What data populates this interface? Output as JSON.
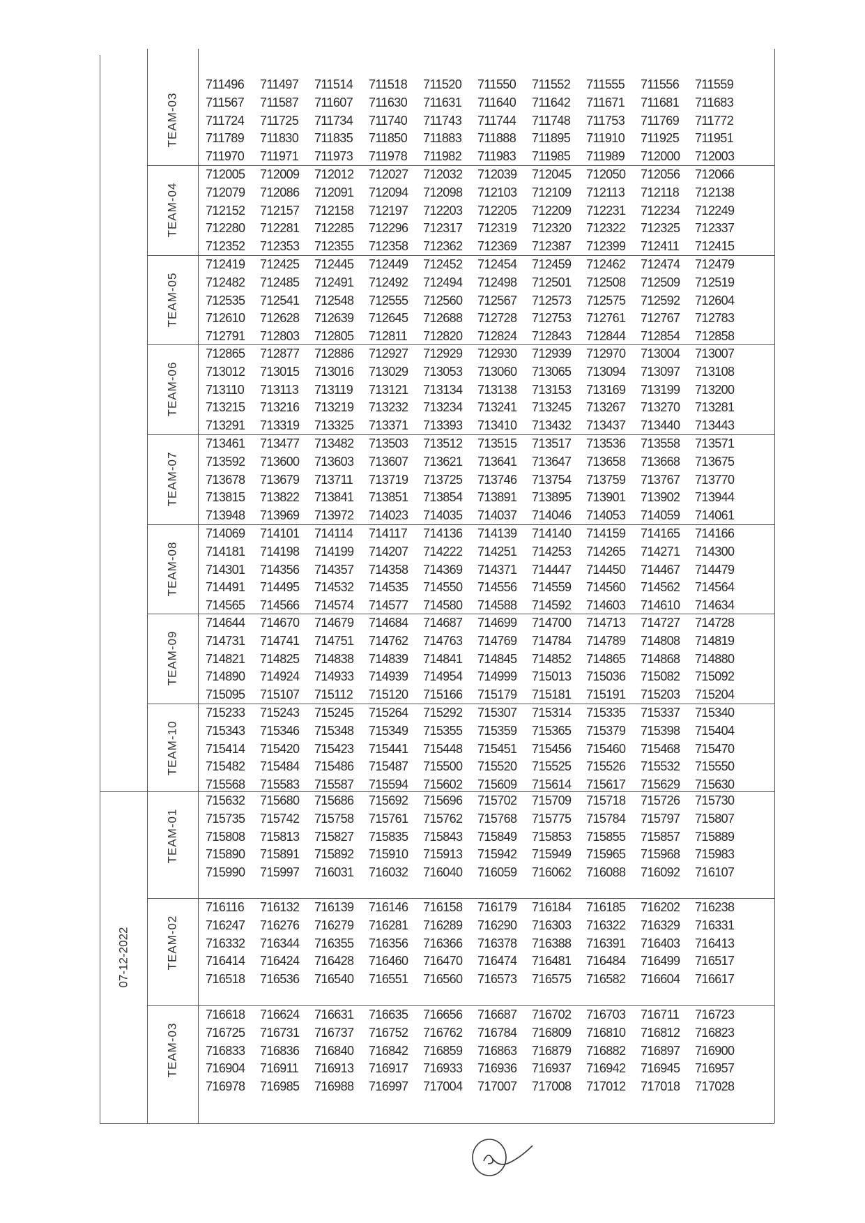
{
  "date_groups": [
    {
      "date": "07-12-2022"
    }
  ],
  "sections": [
    {
      "team": "TEAM-03",
      "rows": [
        [
          "711496",
          "711497",
          "711514",
          "711518",
          "711520",
          "711550",
          "711552",
          "711555",
          "711556",
          "711559"
        ],
        [
          "711567",
          "711587",
          "711607",
          "711630",
          "711631",
          "711640",
          "711642",
          "711671",
          "711681",
          "711683"
        ],
        [
          "711724",
          "711725",
          "711734",
          "711740",
          "711743",
          "711744",
          "711748",
          "711753",
          "711769",
          "711772"
        ],
        [
          "711789",
          "711830",
          "711835",
          "711850",
          "711883",
          "711888",
          "711895",
          "711910",
          "711925",
          "711951"
        ],
        [
          "711970",
          "711971",
          "711973",
          "711978",
          "711982",
          "711983",
          "711985",
          "711989",
          "712000",
          "712003"
        ]
      ]
    },
    {
      "team": "TEAM-04",
      "rows": [
        [
          "712005",
          "712009",
          "712012",
          "712027",
          "712032",
          "712039",
          "712045",
          "712050",
          "712056",
          "712066"
        ],
        [
          "712079",
          "712086",
          "712091",
          "712094",
          "712098",
          "712103",
          "712109",
          "712113",
          "712118",
          "712138"
        ],
        [
          "712152",
          "712157",
          "712158",
          "712197",
          "712203",
          "712205",
          "712209",
          "712231",
          "712234",
          "712249"
        ],
        [
          "712280",
          "712281",
          "712285",
          "712296",
          "712317",
          "712319",
          "712320",
          "712322",
          "712325",
          "712337"
        ],
        [
          "712352",
          "712353",
          "712355",
          "712358",
          "712362",
          "712369",
          "712387",
          "712399",
          "712411",
          "712415"
        ]
      ]
    },
    {
      "team": "TEAM-05",
      "rows": [
        [
          "712419",
          "712425",
          "712445",
          "712449",
          "712452",
          "712454",
          "712459",
          "712462",
          "712474",
          "712479"
        ],
        [
          "712482",
          "712485",
          "712491",
          "712492",
          "712494",
          "712498",
          "712501",
          "712508",
          "712509",
          "712519"
        ],
        [
          "712535",
          "712541",
          "712548",
          "712555",
          "712560",
          "712567",
          "712573",
          "712575",
          "712592",
          "712604"
        ],
        [
          "712610",
          "712628",
          "712639",
          "712645",
          "712688",
          "712728",
          "712753",
          "712761",
          "712767",
          "712783"
        ],
        [
          "712791",
          "712803",
          "712805",
          "712811",
          "712820",
          "712824",
          "712843",
          "712844",
          "712854",
          "712858"
        ]
      ]
    },
    {
      "team": "TEAM-06",
      "rows": [
        [
          "712865",
          "712877",
          "712886",
          "712927",
          "712929",
          "712930",
          "712939",
          "712970",
          "713004",
          "713007"
        ],
        [
          "713012",
          "713015",
          "713016",
          "713029",
          "713053",
          "713060",
          "713065",
          "713094",
          "713097",
          "713108"
        ],
        [
          "713110",
          "713113",
          "713119",
          "713121",
          "713134",
          "713138",
          "713153",
          "713169",
          "713199",
          "713200"
        ],
        [
          "713215",
          "713216",
          "713219",
          "713232",
          "713234",
          "713241",
          "713245",
          "713267",
          "713270",
          "713281"
        ],
        [
          "713291",
          "713319",
          "713325",
          "713371",
          "713393",
          "713410",
          "713432",
          "713437",
          "713440",
          "713443"
        ]
      ]
    },
    {
      "team": "TEAM-07",
      "rows": [
        [
          "713461",
          "713477",
          "713482",
          "713503",
          "713512",
          "713515",
          "713517",
          "713536",
          "713558",
          "713571"
        ],
        [
          "713592",
          "713600",
          "713603",
          "713607",
          "713621",
          "713641",
          "713647",
          "713658",
          "713668",
          "713675"
        ],
        [
          "713678",
          "713679",
          "713711",
          "713719",
          "713725",
          "713746",
          "713754",
          "713759",
          "713767",
          "713770"
        ],
        [
          "713815",
          "713822",
          "713841",
          "713851",
          "713854",
          "713891",
          "713895",
          "713901",
          "713902",
          "713944"
        ],
        [
          "713948",
          "713969",
          "713972",
          "714023",
          "714035",
          "714037",
          "714046",
          "714053",
          "714059",
          "714061"
        ]
      ]
    },
    {
      "team": "TEAM-08",
      "rows": [
        [
          "714069",
          "714101",
          "714114",
          "714117",
          "714136",
          "714139",
          "714140",
          "714159",
          "714165",
          "714166"
        ],
        [
          "714181",
          "714198",
          "714199",
          "714207",
          "714222",
          "714251",
          "714253",
          "714265",
          "714271",
          "714300"
        ],
        [
          "714301",
          "714356",
          "714357",
          "714358",
          "714369",
          "714371",
          "714447",
          "714450",
          "714467",
          "714479"
        ],
        [
          "714491",
          "714495",
          "714532",
          "714535",
          "714550",
          "714556",
          "714559",
          "714560",
          "714562",
          "714564"
        ],
        [
          "714565",
          "714566",
          "714574",
          "714577",
          "714580",
          "714588",
          "714592",
          "714603",
          "714610",
          "714634"
        ]
      ]
    },
    {
      "team": "TEAM-09",
      "rows": [
        [
          "714644",
          "714670",
          "714679",
          "714684",
          "714687",
          "714699",
          "714700",
          "714713",
          "714727",
          "714728"
        ],
        [
          "714731",
          "714741",
          "714751",
          "714762",
          "714763",
          "714769",
          "714784",
          "714789",
          "714808",
          "714819"
        ],
        [
          "714821",
          "714825",
          "714838",
          "714839",
          "714841",
          "714845",
          "714852",
          "714865",
          "714868",
          "714880"
        ],
        [
          "714890",
          "714924",
          "714933",
          "714939",
          "714954",
          "714999",
          "715013",
          "715036",
          "715082",
          "715092"
        ],
        [
          "715095",
          "715107",
          "715112",
          "715120",
          "715166",
          "715179",
          "715181",
          "715191",
          "715203",
          "715204"
        ]
      ]
    },
    {
      "team": "TEAM-10",
      "rows": [
        [
          "715233",
          "715243",
          "715245",
          "715264",
          "715292",
          "715307",
          "715314",
          "715335",
          "715337",
          "715340"
        ],
        [
          "715343",
          "715346",
          "715348",
          "715349",
          "715355",
          "715359",
          "715365",
          "715379",
          "715398",
          "715404"
        ],
        [
          "715414",
          "715420",
          "715423",
          "715441",
          "715448",
          "715451",
          "715456",
          "715460",
          "715468",
          "715470"
        ],
        [
          "715482",
          "715484",
          "715486",
          "715487",
          "715500",
          "715520",
          "715525",
          "715526",
          "715532",
          "715550"
        ],
        [
          "715568",
          "715583",
          "715587",
          "715594",
          "715602",
          "715609",
          "715614",
          "715617",
          "715629",
          "715630"
        ]
      ]
    },
    {
      "team": "TEAM-01",
      "rows": [
        [
          "715632",
          "715680",
          "715686",
          "715692",
          "715696",
          "715702",
          "715709",
          "715718",
          "715726",
          "715730"
        ],
        [
          "715735",
          "715742",
          "715758",
          "715761",
          "715762",
          "715768",
          "715775",
          "715784",
          "715797",
          "715807"
        ],
        [
          "715808",
          "715813",
          "715827",
          "715835",
          "715843",
          "715849",
          "715853",
          "715855",
          "715857",
          "715889"
        ],
        [
          "715890",
          "715891",
          "715892",
          "715910",
          "715913",
          "715942",
          "715949",
          "715965",
          "715968",
          "715983"
        ],
        [
          "715990",
          "715997",
          "716031",
          "716032",
          "716040",
          "716059",
          "716062",
          "716088",
          "716092",
          "716107"
        ]
      ]
    },
    {
      "team": "TEAM-02",
      "rows": [
        [
          "716116",
          "716132",
          "716139",
          "716146",
          "716158",
          "716179",
          "716184",
          "716185",
          "716202",
          "716238"
        ],
        [
          "716247",
          "716276",
          "716279",
          "716281",
          "716289",
          "716290",
          "716303",
          "716322",
          "716329",
          "716331"
        ],
        [
          "716332",
          "716344",
          "716355",
          "716356",
          "716366",
          "716378",
          "716388",
          "716391",
          "716403",
          "716413"
        ],
        [
          "716414",
          "716424",
          "716428",
          "716460",
          "716470",
          "716474",
          "716481",
          "716484",
          "716499",
          "716517"
        ],
        [
          "716518",
          "716536",
          "716540",
          "716551",
          "716560",
          "716573",
          "716575",
          "716582",
          "716604",
          "716617"
        ]
      ]
    },
    {
      "team": "TEAM-03",
      "rows": [
        [
          "716618",
          "716624",
          "716631",
          "716635",
          "716656",
          "716687",
          "716702",
          "716703",
          "716711",
          "716723"
        ],
        [
          "716725",
          "716731",
          "716737",
          "716752",
          "716762",
          "716784",
          "716809",
          "716810",
          "716812",
          "716823"
        ],
        [
          "716833",
          "716836",
          "716840",
          "716842",
          "716859",
          "716863",
          "716879",
          "716882",
          "716897",
          "716900"
        ],
        [
          "716904",
          "716911",
          "716913",
          "716917",
          "716933",
          "716936",
          "716937",
          "716942",
          "716945",
          "716957"
        ],
        [
          "716978",
          "716985",
          "716988",
          "716997",
          "717004",
          "717007",
          "717008",
          "717012",
          "717018",
          "717028"
        ]
      ]
    }
  ]
}
